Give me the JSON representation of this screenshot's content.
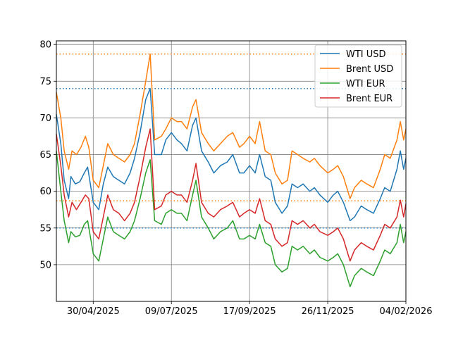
{
  "chart_data": {
    "type": "line",
    "title": "",
    "xlabel": "",
    "ylabel": "",
    "x_start": "2025-03-28",
    "x_end": "2026-02-04",
    "xlim": [
      "2025-03-28",
      "2026-02-04"
    ],
    "ylim": [
      45,
      80.5
    ],
    "grid": true,
    "legend_position": "top-right",
    "x_ticks": [
      "30/04/2025",
      "09/07/2025",
      "17/09/2025",
      "26/11/2025",
      "04/02/2026"
    ],
    "x_tick_dates": [
      "2025-04-30",
      "2025-07-09",
      "2025-09-17",
      "2025-11-26",
      "2026-02-04"
    ],
    "y_ticks": [
      50,
      55,
      60,
      65,
      70,
      75,
      80
    ],
    "reference_lines": [
      {
        "value": 78.7,
        "color": "#ff7f0e"
      },
      {
        "value": 74.0,
        "color": "#1f77b4"
      },
      {
        "value": 58.7,
        "color": "#ff7f0e"
      },
      {
        "value": 55.0,
        "color": "#1f77b4"
      }
    ],
    "series": [
      {
        "name": "WTI USD",
        "color": "#1f77b4",
        "points": [
          [
            "2025-03-28",
            70.5
          ],
          [
            "2025-04-01",
            66.5
          ],
          [
            "2025-04-04",
            61.5
          ],
          [
            "2025-04-08",
            59.0
          ],
          [
            "2025-04-10",
            62.0
          ],
          [
            "2025-04-14",
            61.0
          ],
          [
            "2025-04-18",
            61.3
          ],
          [
            "2025-04-22",
            62.5
          ],
          [
            "2025-04-25",
            63.3
          ],
          [
            "2025-04-30",
            58.5
          ],
          [
            "2025-05-05",
            57.5
          ],
          [
            "2025-05-09",
            61.0
          ],
          [
            "2025-05-13",
            63.3
          ],
          [
            "2025-05-18",
            62.0
          ],
          [
            "2025-05-23",
            61.5
          ],
          [
            "2025-05-28",
            61.0
          ],
          [
            "2025-06-02",
            62.5
          ],
          [
            "2025-06-06",
            64.5
          ],
          [
            "2025-06-11",
            68.0
          ],
          [
            "2025-06-16",
            72.5
          ],
          [
            "2025-06-20",
            74.0
          ],
          [
            "2025-06-24",
            65.0
          ],
          [
            "2025-06-30",
            65.0
          ],
          [
            "2025-07-04",
            67.0
          ],
          [
            "2025-07-09",
            68.0
          ],
          [
            "2025-07-14",
            67.0
          ],
          [
            "2025-07-18",
            66.5
          ],
          [
            "2025-07-23",
            65.5
          ],
          [
            "2025-07-28",
            69.0
          ],
          [
            "2025-07-31",
            70.0
          ],
          [
            "2025-08-05",
            65.5
          ],
          [
            "2025-08-11",
            64.0
          ],
          [
            "2025-08-16",
            62.5
          ],
          [
            "2025-08-22",
            63.5
          ],
          [
            "2025-08-28",
            64.0
          ],
          [
            "2025-09-02",
            65.0
          ],
          [
            "2025-09-08",
            62.5
          ],
          [
            "2025-09-12",
            62.5
          ],
          [
            "2025-09-17",
            63.5
          ],
          [
            "2025-09-22",
            62.5
          ],
          [
            "2025-09-26",
            65.0
          ],
          [
            "2025-10-01",
            62.0
          ],
          [
            "2025-10-06",
            61.5
          ],
          [
            "2025-10-10",
            58.5
          ],
          [
            "2025-10-16",
            57.0
          ],
          [
            "2025-10-21",
            58.0
          ],
          [
            "2025-10-25",
            61.0
          ],
          [
            "2025-10-30",
            60.5
          ],
          [
            "2025-11-04",
            61.0
          ],
          [
            "2025-11-10",
            60.0
          ],
          [
            "2025-11-14",
            60.5
          ],
          [
            "2025-11-19",
            59.5
          ],
          [
            "2025-11-26",
            58.5
          ],
          [
            "2025-12-01",
            59.5
          ],
          [
            "2025-12-05",
            60.0
          ],
          [
            "2025-12-10",
            58.5
          ],
          [
            "2025-12-16",
            56.0
          ],
          [
            "2025-12-20",
            56.5
          ],
          [
            "2025-12-26",
            58.0
          ],
          [
            "2025-12-31",
            57.5
          ],
          [
            "2026-01-06",
            57.0
          ],
          [
            "2026-01-12",
            59.0
          ],
          [
            "2026-01-16",
            60.5
          ],
          [
            "2026-01-21",
            60.0
          ],
          [
            "2026-01-27",
            63.0
          ],
          [
            "2026-01-30",
            65.5
          ],
          [
            "2026-02-02",
            63.0
          ],
          [
            "2026-02-04",
            64.5
          ]
        ]
      },
      {
        "name": "Brent USD",
        "color": "#ff7f0e",
        "points": [
          [
            "2025-03-28",
            73.5
          ],
          [
            "2025-04-01",
            70.0
          ],
          [
            "2025-04-04",
            65.5
          ],
          [
            "2025-04-08",
            63.0
          ],
          [
            "2025-04-11",
            65.5
          ],
          [
            "2025-04-15",
            65.0
          ],
          [
            "2025-04-19",
            66.0
          ],
          [
            "2025-04-23",
            67.5
          ],
          [
            "2025-04-26",
            66.0
          ],
          [
            "2025-04-30",
            61.5
          ],
          [
            "2025-05-05",
            60.5
          ],
          [
            "2025-05-09",
            63.5
          ],
          [
            "2025-05-13",
            66.5
          ],
          [
            "2025-05-18",
            65.0
          ],
          [
            "2025-05-23",
            64.5
          ],
          [
            "2025-05-28",
            64.0
          ],
          [
            "2025-06-02",
            65.0
          ],
          [
            "2025-06-06",
            66.5
          ],
          [
            "2025-06-11",
            70.5
          ],
          [
            "2025-06-16",
            75.0
          ],
          [
            "2025-06-20",
            78.7
          ],
          [
            "2025-06-24",
            67.0
          ],
          [
            "2025-06-30",
            67.5
          ],
          [
            "2025-07-04",
            68.5
          ],
          [
            "2025-07-09",
            70.0
          ],
          [
            "2025-07-14",
            69.5
          ],
          [
            "2025-07-18",
            69.5
          ],
          [
            "2025-07-23",
            68.5
          ],
          [
            "2025-07-28",
            71.5
          ],
          [
            "2025-07-31",
            72.5
          ],
          [
            "2025-08-05",
            68.0
          ],
          [
            "2025-08-11",
            66.5
          ],
          [
            "2025-08-16",
            65.5
          ],
          [
            "2025-08-22",
            66.5
          ],
          [
            "2025-08-28",
            67.5
          ],
          [
            "2025-09-02",
            68.0
          ],
          [
            "2025-09-08",
            66.0
          ],
          [
            "2025-09-12",
            66.5
          ],
          [
            "2025-09-17",
            67.5
          ],
          [
            "2025-09-22",
            66.5
          ],
          [
            "2025-09-26",
            69.5
          ],
          [
            "2025-10-01",
            65.5
          ],
          [
            "2025-10-06",
            65.0
          ],
          [
            "2025-10-10",
            62.5
          ],
          [
            "2025-10-16",
            61.0
          ],
          [
            "2025-10-21",
            61.5
          ],
          [
            "2025-10-25",
            65.5
          ],
          [
            "2025-10-30",
            65.0
          ],
          [
            "2025-11-04",
            64.5
          ],
          [
            "2025-11-10",
            64.0
          ],
          [
            "2025-11-14",
            64.5
          ],
          [
            "2025-11-19",
            63.5
          ],
          [
            "2025-11-26",
            62.5
          ],
          [
            "2025-12-01",
            63.0
          ],
          [
            "2025-12-05",
            63.5
          ],
          [
            "2025-12-10",
            62.0
          ],
          [
            "2025-12-16",
            59.0
          ],
          [
            "2025-12-20",
            60.5
          ],
          [
            "2025-12-26",
            61.5
          ],
          [
            "2025-12-31",
            61.0
          ],
          [
            "2026-01-06",
            60.5
          ],
          [
            "2026-01-12",
            63.0
          ],
          [
            "2026-01-16",
            65.0
          ],
          [
            "2026-01-21",
            64.5
          ],
          [
            "2026-01-27",
            67.0
          ],
          [
            "2026-01-30",
            69.5
          ],
          [
            "2026-02-02",
            67.0
          ],
          [
            "2026-02-04",
            68.5
          ]
        ]
      },
      {
        "name": "WTI EUR",
        "color": "#2ca02c",
        "points": [
          [
            "2025-03-28",
            65.5
          ],
          [
            "2025-04-01",
            60.0
          ],
          [
            "2025-04-04",
            56.0
          ],
          [
            "2025-04-08",
            53.0
          ],
          [
            "2025-04-10",
            54.5
          ],
          [
            "2025-04-14",
            53.8
          ],
          [
            "2025-04-18",
            54.0
          ],
          [
            "2025-04-22",
            55.5
          ],
          [
            "2025-04-25",
            56.0
          ],
          [
            "2025-04-30",
            51.5
          ],
          [
            "2025-05-05",
            50.5
          ],
          [
            "2025-05-09",
            53.5
          ],
          [
            "2025-05-13",
            56.5
          ],
          [
            "2025-05-18",
            54.5
          ],
          [
            "2025-05-23",
            54.0
          ],
          [
            "2025-05-28",
            53.5
          ],
          [
            "2025-06-02",
            54.5
          ],
          [
            "2025-06-06",
            56.0
          ],
          [
            "2025-06-11",
            59.0
          ],
          [
            "2025-06-16",
            62.5
          ],
          [
            "2025-06-20",
            64.3
          ],
          [
            "2025-06-24",
            56.0
          ],
          [
            "2025-06-30",
            55.5
          ],
          [
            "2025-07-04",
            57.0
          ],
          [
            "2025-07-09",
            57.5
          ],
          [
            "2025-07-14",
            57.0
          ],
          [
            "2025-07-18",
            57.0
          ],
          [
            "2025-07-23",
            56.0
          ],
          [
            "2025-07-28",
            59.5
          ],
          [
            "2025-07-31",
            61.5
          ],
          [
            "2025-08-05",
            56.5
          ],
          [
            "2025-08-11",
            55.0
          ],
          [
            "2025-08-16",
            53.5
          ],
          [
            "2025-08-22",
            54.5
          ],
          [
            "2025-08-28",
            55.0
          ],
          [
            "2025-09-02",
            56.0
          ],
          [
            "2025-09-08",
            53.5
          ],
          [
            "2025-09-12",
            53.5
          ],
          [
            "2025-09-17",
            54.0
          ],
          [
            "2025-09-22",
            53.5
          ],
          [
            "2025-09-26",
            55.5
          ],
          [
            "2025-10-01",
            53.0
          ],
          [
            "2025-10-06",
            52.5
          ],
          [
            "2025-10-10",
            50.0
          ],
          [
            "2025-10-16",
            49.0
          ],
          [
            "2025-10-21",
            49.5
          ],
          [
            "2025-10-25",
            52.5
          ],
          [
            "2025-10-30",
            52.0
          ],
          [
            "2025-11-04",
            52.5
          ],
          [
            "2025-11-10",
            51.5
          ],
          [
            "2025-11-14",
            52.0
          ],
          [
            "2025-11-19",
            51.0
          ],
          [
            "2025-11-26",
            50.5
          ],
          [
            "2025-12-01",
            51.0
          ],
          [
            "2025-12-05",
            51.5
          ],
          [
            "2025-12-10",
            50.0
          ],
          [
            "2025-12-16",
            47.0
          ],
          [
            "2025-12-20",
            48.5
          ],
          [
            "2025-12-26",
            49.5
          ],
          [
            "2025-12-31",
            49.0
          ],
          [
            "2026-01-06",
            48.5
          ],
          [
            "2026-01-12",
            50.5
          ],
          [
            "2026-01-16",
            52.0
          ],
          [
            "2026-01-21",
            51.5
          ],
          [
            "2026-01-27",
            53.0
          ],
          [
            "2026-01-30",
            55.5
          ],
          [
            "2026-02-02",
            53.0
          ],
          [
            "2026-02-04",
            54.5
          ]
        ]
      },
      {
        "name": "Brent EUR",
        "color": "#d62728",
        "points": [
          [
            "2025-03-28",
            67.8
          ],
          [
            "2025-04-01",
            63.5
          ],
          [
            "2025-04-04",
            59.5
          ],
          [
            "2025-04-08",
            56.5
          ],
          [
            "2025-04-11",
            58.5
          ],
          [
            "2025-04-15",
            57.5
          ],
          [
            "2025-04-19",
            58.5
          ],
          [
            "2025-04-23",
            59.5
          ],
          [
            "2025-04-26",
            59.0
          ],
          [
            "2025-04-30",
            54.5
          ],
          [
            "2025-05-05",
            53.5
          ],
          [
            "2025-05-09",
            56.5
          ],
          [
            "2025-05-13",
            59.5
          ],
          [
            "2025-05-18",
            57.5
          ],
          [
            "2025-05-23",
            57.0
          ],
          [
            "2025-05-28",
            56.0
          ],
          [
            "2025-06-02",
            57.0
          ],
          [
            "2025-06-06",
            58.5
          ],
          [
            "2025-06-11",
            62.0
          ],
          [
            "2025-06-16",
            66.0
          ],
          [
            "2025-06-20",
            68.5
          ],
          [
            "2025-06-24",
            57.5
          ],
          [
            "2025-06-30",
            58.0
          ],
          [
            "2025-07-04",
            59.5
          ],
          [
            "2025-07-09",
            60.0
          ],
          [
            "2025-07-14",
            59.5
          ],
          [
            "2025-07-18",
            59.5
          ],
          [
            "2025-07-23",
            58.5
          ],
          [
            "2025-07-28",
            61.5
          ],
          [
            "2025-07-31",
            63.8
          ],
          [
            "2025-08-05",
            58.5
          ],
          [
            "2025-08-11",
            57.0
          ],
          [
            "2025-08-16",
            56.5
          ],
          [
            "2025-08-22",
            57.5
          ],
          [
            "2025-08-28",
            58.0
          ],
          [
            "2025-09-02",
            58.5
          ],
          [
            "2025-09-08",
            56.5
          ],
          [
            "2025-09-12",
            57.0
          ],
          [
            "2025-09-17",
            57.5
          ],
          [
            "2025-09-22",
            57.0
          ],
          [
            "2025-09-26",
            59.0
          ],
          [
            "2025-10-01",
            56.0
          ],
          [
            "2025-10-06",
            55.5
          ],
          [
            "2025-10-10",
            53.5
          ],
          [
            "2025-10-16",
            52.5
          ],
          [
            "2025-10-21",
            53.0
          ],
          [
            "2025-10-25",
            56.0
          ],
          [
            "2025-10-30",
            55.5
          ],
          [
            "2025-11-04",
            56.0
          ],
          [
            "2025-11-10",
            55.0
          ],
          [
            "2025-11-14",
            55.5
          ],
          [
            "2025-11-19",
            54.5
          ],
          [
            "2025-11-26",
            54.0
          ],
          [
            "2025-12-01",
            54.5
          ],
          [
            "2025-12-05",
            55.0
          ],
          [
            "2025-12-10",
            53.5
          ],
          [
            "2025-12-16",
            50.5
          ],
          [
            "2025-12-20",
            52.0
          ],
          [
            "2025-12-26",
            53.0
          ],
          [
            "2025-12-31",
            52.5
          ],
          [
            "2026-01-06",
            52.0
          ],
          [
            "2026-01-12",
            54.0
          ],
          [
            "2026-01-16",
            55.5
          ],
          [
            "2026-01-21",
            55.0
          ],
          [
            "2026-01-27",
            56.5
          ],
          [
            "2026-01-30",
            58.8
          ],
          [
            "2026-02-02",
            56.5
          ],
          [
            "2026-02-04",
            58.3
          ]
        ]
      }
    ]
  }
}
